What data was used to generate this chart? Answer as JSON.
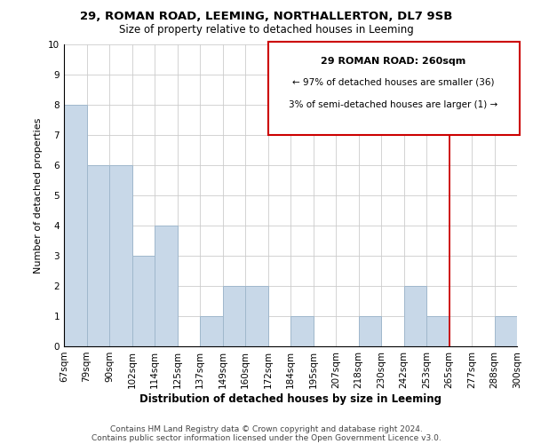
{
  "title1": "29, ROMAN ROAD, LEEMING, NORTHALLERTON, DL7 9SB",
  "title2": "Size of property relative to detached houses in Leeming",
  "xlabel": "Distribution of detached houses by size in Leeming",
  "ylabel": "Number of detached properties",
  "categories": [
    "67sqm",
    "79sqm",
    "90sqm",
    "102sqm",
    "114sqm",
    "125sqm",
    "137sqm",
    "149sqm",
    "160sqm",
    "172sqm",
    "184sqm",
    "195sqm",
    "207sqm",
    "218sqm",
    "230sqm",
    "242sqm",
    "253sqm",
    "265sqm",
    "277sqm",
    "288sqm",
    "300sqm"
  ],
  "bar_heights": [
    8,
    6,
    6,
    3,
    4,
    0,
    1,
    2,
    2,
    0,
    1,
    0,
    0,
    1,
    0,
    2,
    1,
    0,
    0,
    1,
    0
  ],
  "bar_color": "#c8d8e8",
  "bar_edge_color": "#a0b8cc",
  "grid_color": "#cccccc",
  "vline_x_index": 17,
  "vline_color": "#cc0000",
  "ylim": [
    0,
    10
  ],
  "yticks": [
    0,
    1,
    2,
    3,
    4,
    5,
    6,
    7,
    8,
    9,
    10
  ],
  "annotation_box_title": "29 ROMAN ROAD: 260sqm",
  "annotation_line1": "← 97% of detached houses are smaller (36)",
  "annotation_line2": "3% of semi-detached houses are larger (1) →",
  "annotation_box_edge_color": "#cc0000",
  "footer1": "Contains HM Land Registry data © Crown copyright and database right 2024.",
  "footer2": "Contains public sector information licensed under the Open Government Licence v3.0.",
  "title1_fontsize": 9.5,
  "title2_fontsize": 8.5,
  "xlabel_fontsize": 8.5,
  "ylabel_fontsize": 8,
  "tick_fontsize": 7.5,
  "footer_fontsize": 6.5
}
